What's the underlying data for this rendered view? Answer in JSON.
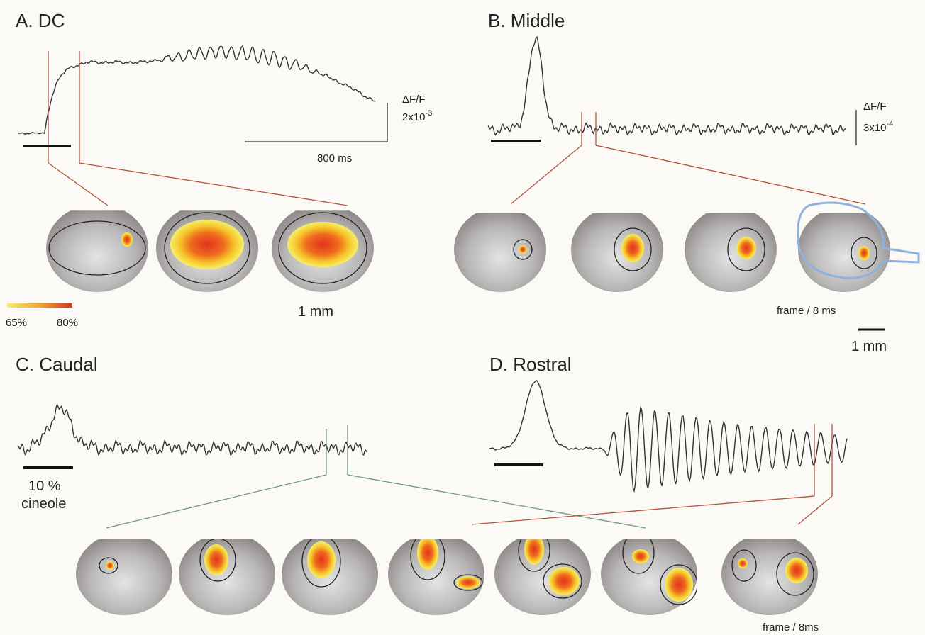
{
  "panels": [
    {
      "title": "A. DC",
      "scale_label": "ΔF/F",
      "scale_value": "2x10",
      "scale_exp": "-3",
      "time_label": "800 ms",
      "colorbar": [
        "65%",
        "80%"
      ],
      "distance": "1 mm"
    },
    {
      "title": "B. Middle",
      "scale_label": "ΔF/F",
      "scale_value": "3x10",
      "scale_exp": "-4",
      "frame_label": "frame / 8 ms",
      "distance": "1 mm"
    },
    {
      "title": "C. Caudal",
      "stimulus": [
        "10 %",
        "cineole"
      ]
    },
    {
      "title": "D. Rostral",
      "frame_label": "frame / 8ms"
    }
  ]
}
